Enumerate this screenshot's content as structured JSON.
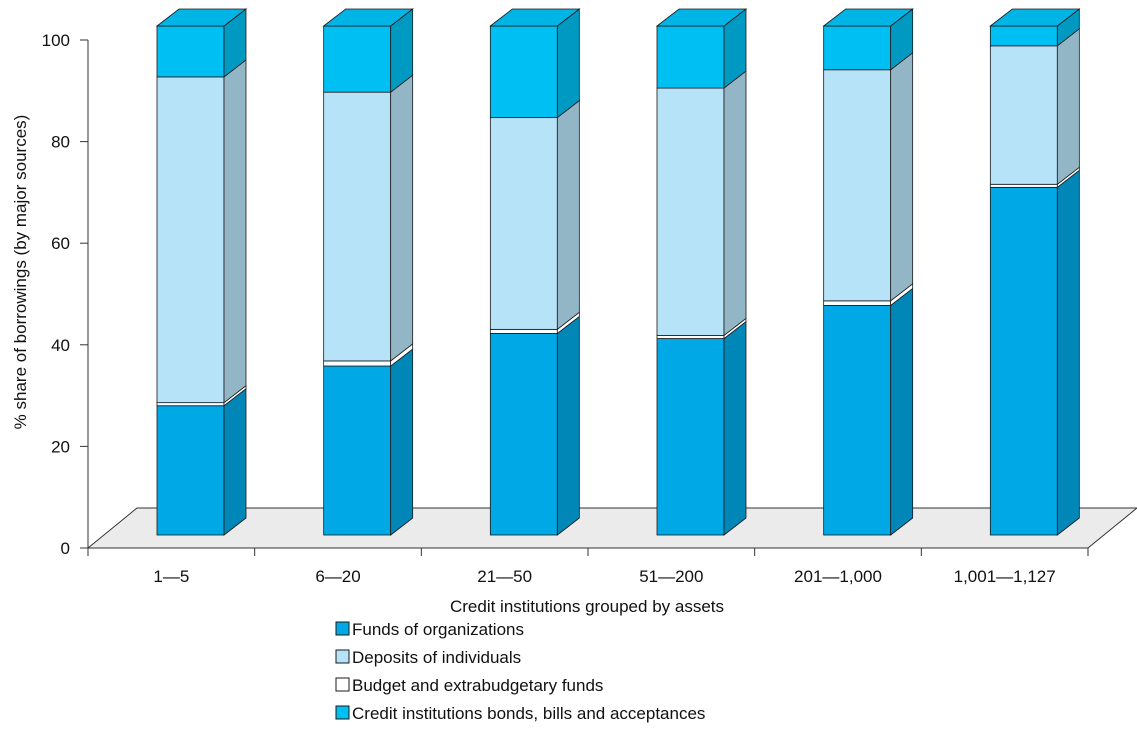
{
  "chart_data": {
    "type": "bar",
    "stacked": true,
    "three_d": true,
    "title": "",
    "xlabel": "Credit institutions grouped by assets",
    "ylabel": "% share of borrowings (by major sources)",
    "ylim": [
      0,
      100
    ],
    "yticks": [
      0,
      20,
      40,
      60,
      80,
      100
    ],
    "categories": [
      "1—5",
      "6—20",
      "21—50",
      "51—200",
      "201—1,000",
      "1,001—1,127"
    ],
    "series": [
      {
        "name": "Funds of organizations",
        "color": "#00a9e6",
        "values": [
          25.4,
          33.2,
          39.6,
          38.6,
          45.1,
          68.3
        ]
      },
      {
        "name": "Budget and extrabudgetary funds",
        "color": "#ffffff",
        "values": [
          0.6,
          1.0,
          0.8,
          0.6,
          0.9,
          0.6
        ]
      },
      {
        "name": "Deposits of individuals",
        "color": "#b7e3f8",
        "values": [
          64.0,
          52.8,
          41.6,
          48.6,
          45.4,
          27.2
        ]
      },
      {
        "name": "Credit institutions bonds, bills and acceptances",
        "color": "#00bff2",
        "values": [
          10.0,
          13.0,
          18.0,
          12.2,
          8.6,
          3.9
        ]
      }
    ],
    "legend_order": [
      0,
      2,
      1,
      3
    ],
    "legend_position": "bottom",
    "grid": false,
    "floor_color": "#ebebeb"
  }
}
